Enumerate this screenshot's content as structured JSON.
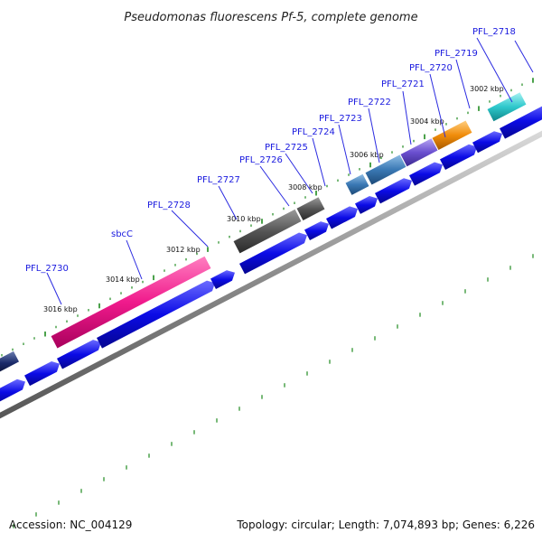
{
  "title": "Pseudomonas fluorescens Pf-5, complete genome",
  "footer": {
    "accession": "Accession: NC_004129",
    "stats": "Topology: circular; Length: 7,074,893 bp; Genes: 6,226"
  },
  "kbp_labels": [
    "3016 kbp",
    "3014 kbp",
    "3012 kbp",
    "3010 kbp",
    "3008 kbp",
    "3006 kbp",
    "3004 kbp",
    "3002 kbp"
  ],
  "colors": {
    "forward_cds": "#0b0be6",
    "tick": "#1f8a1f",
    "backbone": "#8c8c8c",
    "label": "#1a1adf"
  },
  "genes": [
    {
      "name": "PFL_2730",
      "color": "#f01a8c"
    },
    {
      "name": "sbcC",
      "color": "#f01a8c"
    },
    {
      "name": "PFL_2728",
      "color": "#555555"
    },
    {
      "name": "PFL_2727",
      "color": "#555555"
    },
    {
      "name": "PFL_2726",
      "color": "#3a78b4"
    },
    {
      "name": "PFL_2725",
      "color": "#3a78b4"
    },
    {
      "name": "PFL_2724",
      "color": "#3a78b4"
    },
    {
      "name": "PFL_2723",
      "color": "#6a4fd0"
    },
    {
      "name": "PFL_2722",
      "color": "#6a4fd0"
    },
    {
      "name": "PFL_2721",
      "color": "#f08c0a"
    },
    {
      "name": "PFL_2720",
      "color": "#f08c0a"
    },
    {
      "name": "PFL_2719",
      "color": "#2ec8cc"
    },
    {
      "name": "PFL_2718",
      "color": "#2ec8cc"
    }
  ]
}
